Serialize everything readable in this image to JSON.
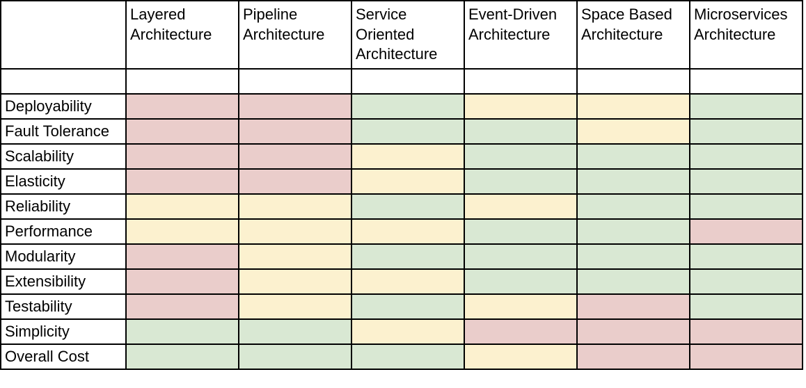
{
  "palette": {
    "red": "#eacdcb",
    "yellow": "#fcf1cf",
    "green": "#d9e8d3"
  },
  "columns": [
    "Layered Architecture",
    "Pipeline Architecture",
    "Service Oriented Architecture",
    "Event-Driven Architecture",
    "Space Based Architecture",
    "Microservices Architecture"
  ],
  "rows": [
    {
      "label": "Deployability",
      "ratings": [
        "red",
        "red",
        "green",
        "yellow",
        "yellow",
        "green"
      ]
    },
    {
      "label": "Fault Tolerance",
      "ratings": [
        "red",
        "red",
        "green",
        "green",
        "yellow",
        "green"
      ]
    },
    {
      "label": "Scalability",
      "ratings": [
        "red",
        "red",
        "yellow",
        "green",
        "green",
        "green"
      ]
    },
    {
      "label": "Elasticity",
      "ratings": [
        "red",
        "red",
        "yellow",
        "green",
        "green",
        "green"
      ]
    },
    {
      "label": "Reliability",
      "ratings": [
        "yellow",
        "yellow",
        "green",
        "yellow",
        "green",
        "green"
      ]
    },
    {
      "label": "Performance",
      "ratings": [
        "yellow",
        "yellow",
        "yellow",
        "green",
        "green",
        "red"
      ]
    },
    {
      "label": "Modularity",
      "ratings": [
        "red",
        "yellow",
        "green",
        "green",
        "green",
        "green"
      ]
    },
    {
      "label": "Extensibility",
      "ratings": [
        "red",
        "yellow",
        "yellow",
        "green",
        "green",
        "green"
      ]
    },
    {
      "label": "Testability",
      "ratings": [
        "red",
        "yellow",
        "green",
        "yellow",
        "red",
        "green"
      ]
    },
    {
      "label": "Simplicity",
      "ratings": [
        "green",
        "green",
        "yellow",
        "red",
        "red",
        "red"
      ]
    },
    {
      "label": "Overall Cost",
      "ratings": [
        "green",
        "green",
        "green",
        "yellow",
        "red",
        "red"
      ]
    }
  ]
}
